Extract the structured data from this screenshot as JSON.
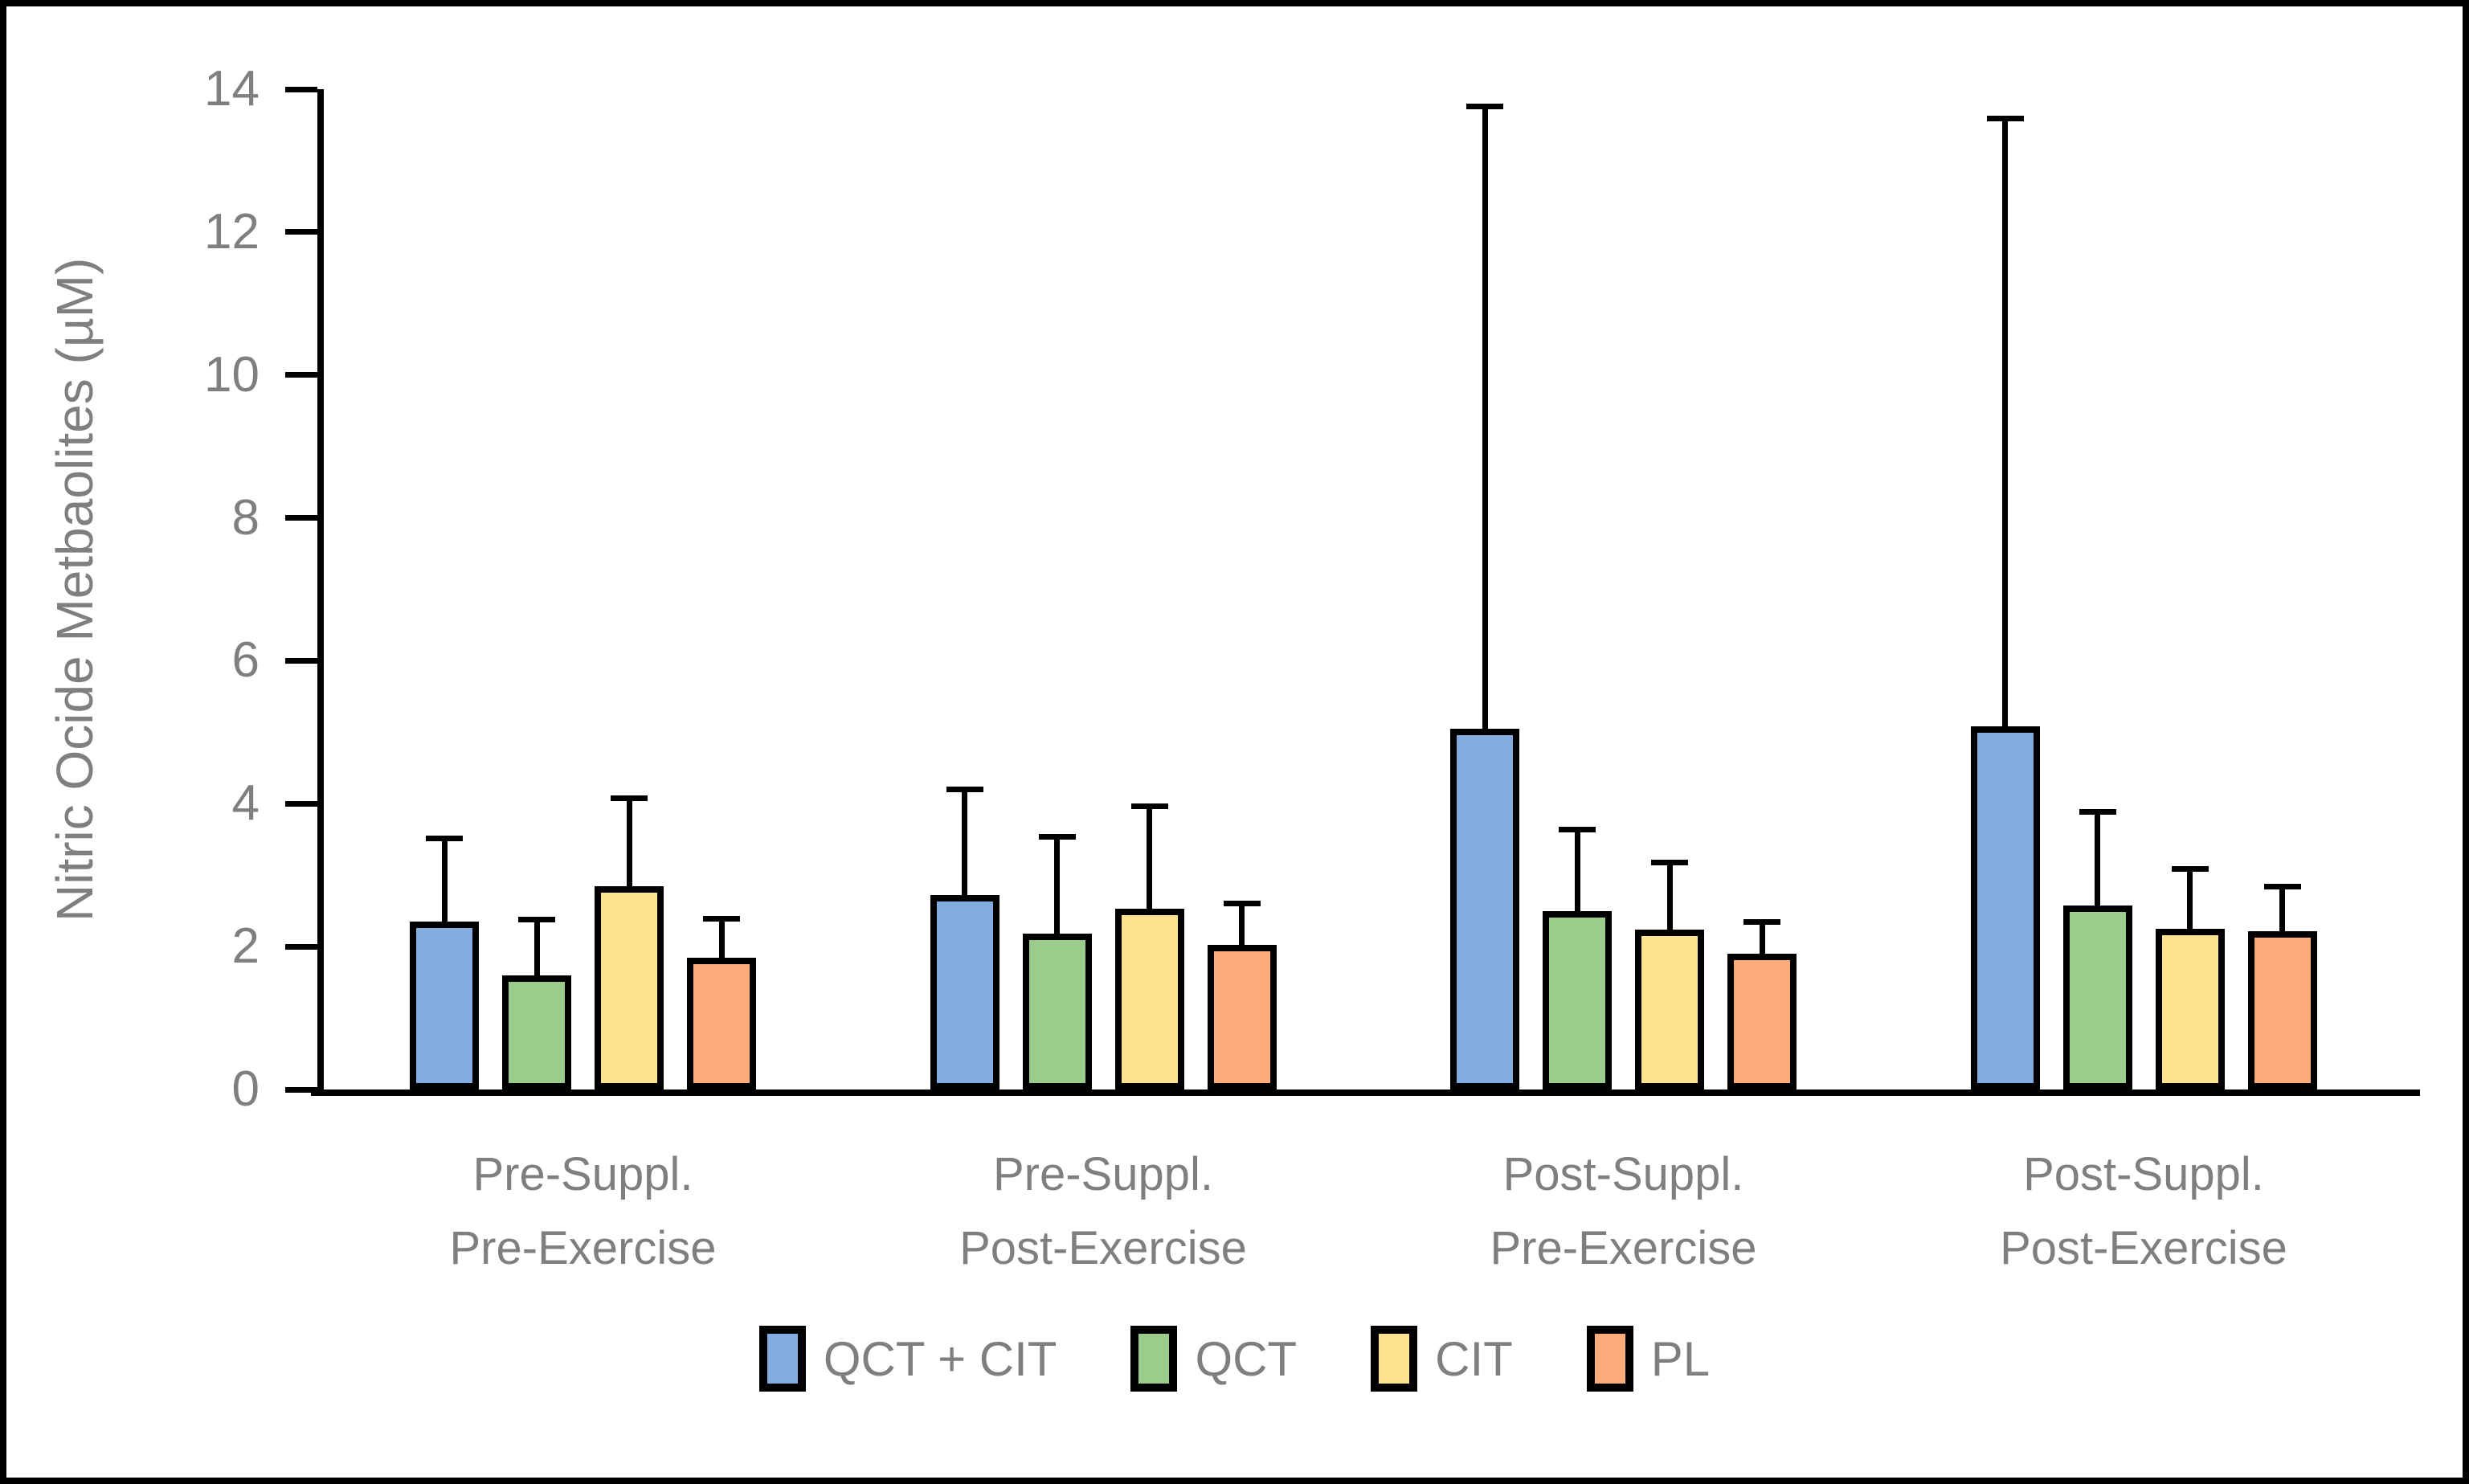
{
  "chart_data": {
    "type": "bar",
    "title": "",
    "xlabel": "",
    "ylabel": "Nitric Ocide Metbaolites (µM)",
    "ylim": [
      0,
      14
    ],
    "yticks": [
      0,
      2,
      4,
      6,
      8,
      10,
      12,
      14
    ],
    "grid": false,
    "legend_position": "bottom",
    "error_bars": "upper_only",
    "categories": [
      [
        "Pre-Suppl.",
        "Pre-Exercise"
      ],
      [
        "Pre-Suppl.",
        "Post-Exercise"
      ],
      [
        "Post-Suppl.",
        "Pre-Exercise"
      ],
      [
        "Post-Suppl.",
        "Post-Exercise"
      ]
    ],
    "series": [
      {
        "name": "QCT + CIT",
        "color": "#82ACDF",
        "values": [
          2.35,
          2.72,
          5.05,
          5.08
        ],
        "errors_up": [
          1.2,
          1.52,
          8.75,
          8.55
        ]
      },
      {
        "name": "QCT",
        "color": "#9ACD8B",
        "values": [
          1.6,
          2.18,
          2.5,
          2.58
        ],
        "errors_up": [
          0.82,
          1.4,
          1.18,
          1.35
        ]
      },
      {
        "name": "CIT",
        "color": "#FDE38D",
        "values": [
          2.85,
          2.53,
          2.24,
          2.25
        ],
        "errors_up": [
          1.27,
          1.47,
          0.98,
          0.88
        ]
      },
      {
        "name": "PL",
        "color": "#FCAC7B",
        "values": [
          1.84,
          2.02,
          1.9,
          2.21
        ],
        "errors_up": [
          0.59,
          0.62,
          0.48,
          0.67
        ]
      }
    ],
    "style": {
      "axis_color": "#000000",
      "text_color": "#7f7f7f",
      "background": "#ffffff"
    }
  }
}
